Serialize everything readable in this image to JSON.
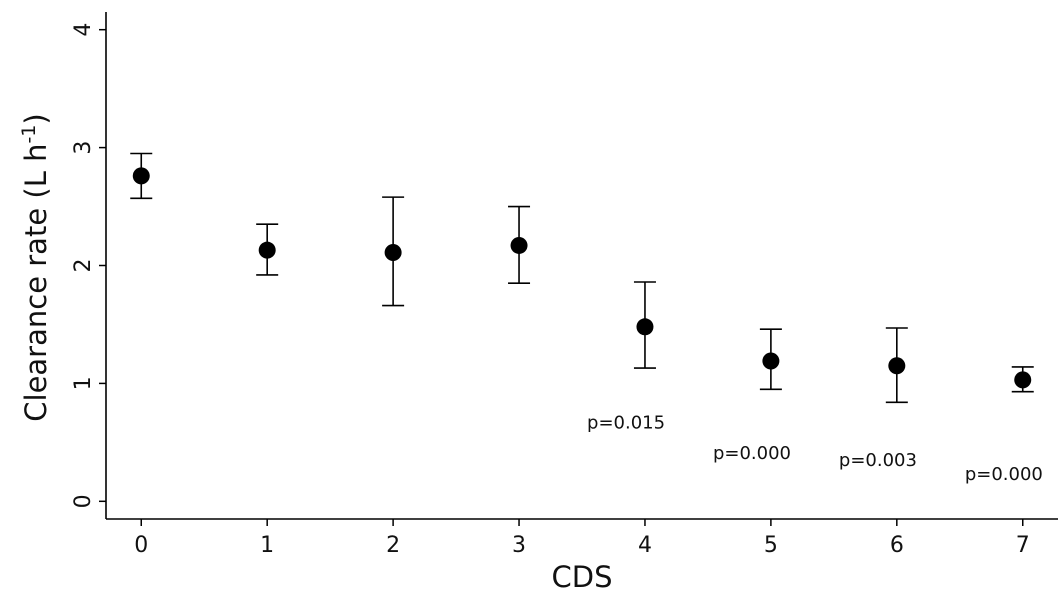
{
  "chart_data": {
    "type": "scatter",
    "title": "",
    "xlabel": "CDS",
    "ylabel": {
      "main": "Clearance rate (L h",
      "superscript": "-1",
      "close": ")"
    },
    "xlim": [
      -0.28,
      7.28
    ],
    "ylim": [
      -0.15,
      4.15
    ],
    "x_ticks": [
      "0",
      "1",
      "2",
      "3",
      "4",
      "5",
      "6",
      "7"
    ],
    "y_ticks": [
      "0",
      "1",
      "2",
      "3",
      "4"
    ],
    "grid": false,
    "legend": "none",
    "marker_color": "#000000",
    "series": [
      {
        "x": [
          0,
          1,
          2,
          3,
          4,
          5,
          6,
          7
        ],
        "y": [
          2.76,
          2.13,
          2.11,
          2.17,
          1.48,
          1.19,
          1.15,
          1.03
        ],
        "y_lower": [
          2.57,
          1.92,
          1.66,
          1.85,
          1.13,
          0.95,
          0.84,
          0.93
        ],
        "y_upper": [
          2.95,
          2.35,
          2.58,
          2.5,
          1.86,
          1.46,
          1.47,
          1.14
        ]
      }
    ],
    "annotations": [
      {
        "text": "p=0.015",
        "x": 3.85,
        "y": 0.67
      },
      {
        "text": "p=0.000",
        "x": 4.85,
        "y": 0.41
      },
      {
        "text": "p=0.003",
        "x": 5.85,
        "y": 0.35
      },
      {
        "text": "p=0.000",
        "x": 6.85,
        "y": 0.23
      }
    ]
  }
}
